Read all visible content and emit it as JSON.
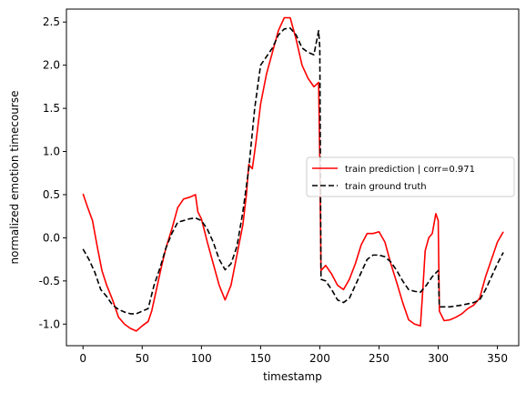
{
  "chart_data": {
    "type": "line",
    "xlabel": "timestamp",
    "ylabel": "normalized emotion timecourse",
    "xlim": [
      -14,
      368
    ],
    "ylim": [
      -1.25,
      2.65
    ],
    "xticks": [
      0,
      50,
      100,
      150,
      200,
      250,
      300,
      350
    ],
    "yticks": [
      -1.0,
      -0.5,
      0.0,
      0.5,
      1.0,
      1.5,
      2.0,
      2.5
    ],
    "grid": false,
    "legend_position": "center-right",
    "series": [
      {
        "name": "train prediction | corr=0.971",
        "color": "#ff0000",
        "style": "solid",
        "points": [
          [
            0,
            0.51
          ],
          [
            4,
            0.35
          ],
          [
            8,
            0.2
          ],
          [
            12,
            -0.1
          ],
          [
            16,
            -0.38
          ],
          [
            20,
            -0.55
          ],
          [
            25,
            -0.72
          ],
          [
            30,
            -0.92
          ],
          [
            35,
            -1.0
          ],
          [
            40,
            -1.05
          ],
          [
            45,
            -1.08
          ],
          [
            50,
            -1.02
          ],
          [
            55,
            -0.97
          ],
          [
            58,
            -0.85
          ],
          [
            62,
            -0.6
          ],
          [
            66,
            -0.35
          ],
          [
            70,
            -0.12
          ],
          [
            75,
            0.1
          ],
          [
            80,
            0.35
          ],
          [
            85,
            0.45
          ],
          [
            90,
            0.47
          ],
          [
            95,
            0.5
          ],
          [
            97,
            0.3
          ],
          [
            100,
            0.22
          ],
          [
            105,
            -0.05
          ],
          [
            110,
            -0.3
          ],
          [
            115,
            -0.55
          ],
          [
            120,
            -0.72
          ],
          [
            125,
            -0.55
          ],
          [
            130,
            -0.2
          ],
          [
            135,
            0.15
          ],
          [
            138,
            0.5
          ],
          [
            140,
            0.85
          ],
          [
            143,
            0.8
          ],
          [
            146,
            1.1
          ],
          [
            150,
            1.55
          ],
          [
            155,
            1.9
          ],
          [
            160,
            2.15
          ],
          [
            165,
            2.4
          ],
          [
            170,
            2.55
          ],
          [
            175,
            2.55
          ],
          [
            180,
            2.3
          ],
          [
            185,
            2.0
          ],
          [
            190,
            1.85
          ],
          [
            195,
            1.75
          ],
          [
            199,
            1.8
          ],
          [
            200,
            0.9
          ],
          [
            201,
            -0.38
          ],
          [
            205,
            -0.32
          ],
          [
            210,
            -0.42
          ],
          [
            215,
            -0.55
          ],
          [
            220,
            -0.6
          ],
          [
            225,
            -0.48
          ],
          [
            230,
            -0.3
          ],
          [
            235,
            -0.08
          ],
          [
            240,
            0.05
          ],
          [
            245,
            0.05
          ],
          [
            250,
            0.07
          ],
          [
            255,
            -0.05
          ],
          [
            260,
            -0.3
          ],
          [
            265,
            -0.52
          ],
          [
            270,
            -0.75
          ],
          [
            275,
            -0.95
          ],
          [
            280,
            -1.0
          ],
          [
            285,
            -1.02
          ],
          [
            287,
            -0.6
          ],
          [
            289,
            -0.15
          ],
          [
            292,
            0.0
          ],
          [
            295,
            0.05
          ],
          [
            298,
            0.28
          ],
          [
            300,
            0.2
          ],
          [
            301,
            -0.85
          ],
          [
            305,
            -0.96
          ],
          [
            310,
            -0.95
          ],
          [
            315,
            -0.92
          ],
          [
            320,
            -0.88
          ],
          [
            325,
            -0.82
          ],
          [
            330,
            -0.78
          ],
          [
            335,
            -0.7
          ],
          [
            340,
            -0.45
          ],
          [
            345,
            -0.25
          ],
          [
            350,
            -0.05
          ],
          [
            355,
            0.07
          ]
        ]
      },
      {
        "name": "train ground truth",
        "color": "#000000",
        "style": "dashed",
        "points": [
          [
            0,
            -0.13
          ],
          [
            5,
            -0.25
          ],
          [
            10,
            -0.4
          ],
          [
            15,
            -0.6
          ],
          [
            20,
            -0.68
          ],
          [
            25,
            -0.78
          ],
          [
            30,
            -0.83
          ],
          [
            35,
            -0.86
          ],
          [
            40,
            -0.88
          ],
          [
            45,
            -0.88
          ],
          [
            50,
            -0.85
          ],
          [
            55,
            -0.82
          ],
          [
            60,
            -0.55
          ],
          [
            65,
            -0.35
          ],
          [
            70,
            -0.12
          ],
          [
            75,
            0.05
          ],
          [
            80,
            0.18
          ],
          [
            85,
            0.2
          ],
          [
            90,
            0.22
          ],
          [
            95,
            0.23
          ],
          [
            100,
            0.2
          ],
          [
            105,
            0.1
          ],
          [
            110,
            -0.05
          ],
          [
            115,
            -0.25
          ],
          [
            120,
            -0.37
          ],
          [
            125,
            -0.3
          ],
          [
            130,
            -0.1
          ],
          [
            135,
            0.3
          ],
          [
            140,
            0.8
          ],
          [
            145,
            1.5
          ],
          [
            150,
            2.0
          ],
          [
            155,
            2.1
          ],
          [
            160,
            2.2
          ],
          [
            165,
            2.35
          ],
          [
            170,
            2.42
          ],
          [
            175,
            2.43
          ],
          [
            180,
            2.35
          ],
          [
            185,
            2.2
          ],
          [
            190,
            2.15
          ],
          [
            195,
            2.12
          ],
          [
            199,
            2.4
          ],
          [
            200,
            2.2
          ],
          [
            201,
            -0.48
          ],
          [
            205,
            -0.5
          ],
          [
            210,
            -0.6
          ],
          [
            215,
            -0.72
          ],
          [
            220,
            -0.75
          ],
          [
            225,
            -0.7
          ],
          [
            230,
            -0.55
          ],
          [
            235,
            -0.4
          ],
          [
            240,
            -0.25
          ],
          [
            245,
            -0.2
          ],
          [
            250,
            -0.2
          ],
          [
            255,
            -0.22
          ],
          [
            260,
            -0.28
          ],
          [
            265,
            -0.38
          ],
          [
            270,
            -0.5
          ],
          [
            275,
            -0.6
          ],
          [
            280,
            -0.62
          ],
          [
            285,
            -0.63
          ],
          [
            290,
            -0.55
          ],
          [
            295,
            -0.45
          ],
          [
            300,
            -0.38
          ],
          [
            301,
            -0.8
          ],
          [
            305,
            -0.8
          ],
          [
            310,
            -0.8
          ],
          [
            320,
            -0.78
          ],
          [
            330,
            -0.75
          ],
          [
            335,
            -0.72
          ],
          [
            340,
            -0.6
          ],
          [
            345,
            -0.45
          ],
          [
            350,
            -0.3
          ],
          [
            355,
            -0.17
          ]
        ]
      }
    ]
  }
}
